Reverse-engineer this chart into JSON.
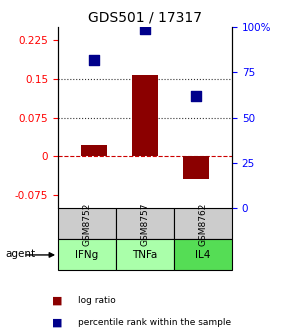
{
  "title": "GDS501 / 17317",
  "samples": [
    "GSM8752",
    "GSM8757",
    "GSM8762"
  ],
  "agents": [
    "IFNg",
    "TNFa",
    "IL4"
  ],
  "log_ratios": [
    0.022,
    0.158,
    -0.044
  ],
  "percentile_ranks": [
    82,
    99,
    62
  ],
  "bar_color": "#8B0000",
  "dot_color": "#00008B",
  "ylim_left": [
    -0.1,
    0.25
  ],
  "ylim_right": [
    0,
    100
  ],
  "yticks_left": [
    -0.075,
    0,
    0.075,
    0.15,
    0.225
  ],
  "ytick_labels_left": [
    "-0.075",
    "0",
    "0.075",
    "0.15",
    "0.225"
  ],
  "yticks_right": [
    0,
    25,
    50,
    75,
    100
  ],
  "ytick_labels_right": [
    "0",
    "25",
    "50",
    "75",
    "100%"
  ],
  "hlines": [
    0.075,
    0.15
  ],
  "hline_zero_color": "#cc0000",
  "hline_dotted_color": "#333333",
  "sample_bg_color": "#cccccc",
  "agent_colors": [
    "#aaffaa",
    "#aaffaa",
    "#55dd55"
  ],
  "bar_width": 0.5,
  "dot_size": 50,
  "title_fontsize": 10,
  "tick_fontsize": 7.5
}
